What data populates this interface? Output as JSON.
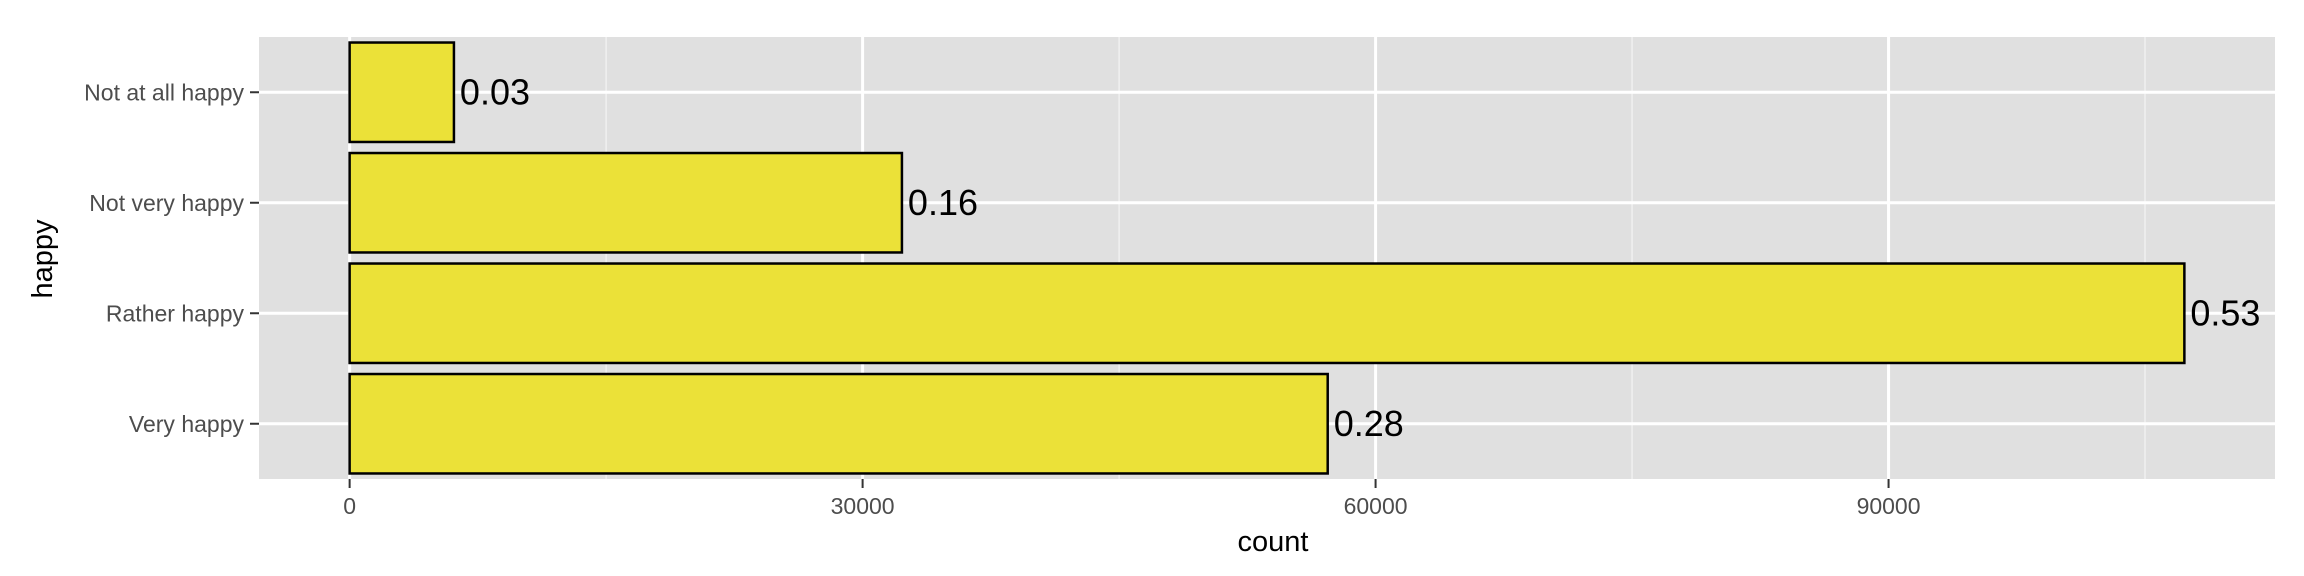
{
  "chart_data": {
    "type": "bar",
    "orientation": "horizontal",
    "categories": [
      "Very happy",
      "Rather happy",
      "Not very happy",
      "Not at all happy"
    ],
    "values": [
      57200,
      107300,
      32300,
      6100
    ],
    "data_labels": [
      "0.28",
      "0.53",
      "0.16",
      "0.03"
    ],
    "xlabel": "count",
    "ylabel": "happy",
    "xlim": [
      -5300,
      112600
    ],
    "x_ticks": [
      0,
      30000,
      60000,
      90000
    ],
    "x_tick_labels": [
      "0",
      "30000",
      "60000",
      "90000"
    ],
    "grid": true,
    "legend": "none",
    "colors": {
      "bar_fill": "#ebe138",
      "bar_stroke": "#000000",
      "panel_bg": "#e0e0e0",
      "grid_major": "#ffffff",
      "grid_minor": "#f0f0f0",
      "tick_text": "#4d4d4d",
      "tick_mark": "#333333"
    }
  }
}
